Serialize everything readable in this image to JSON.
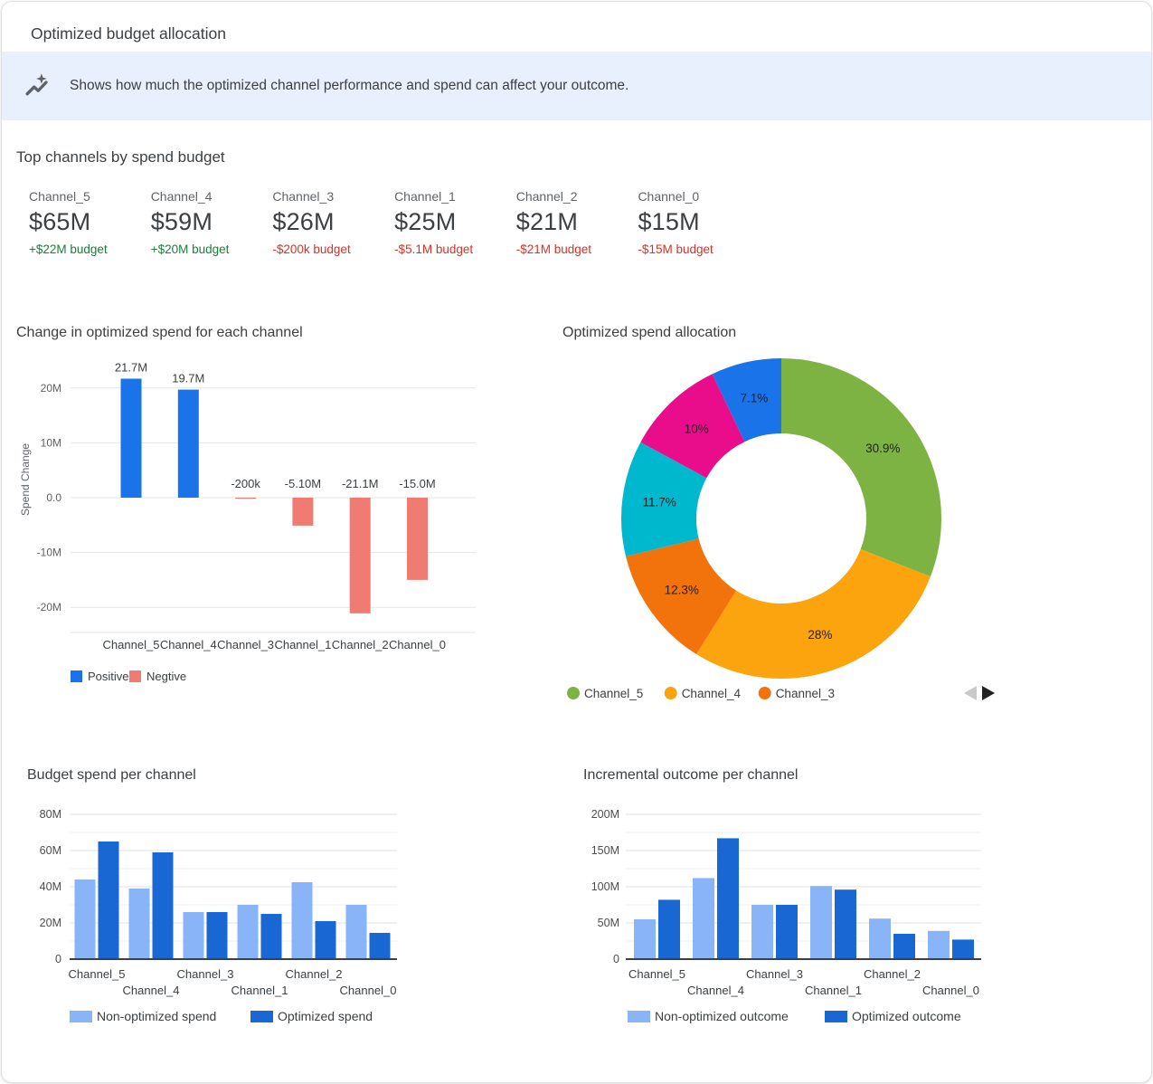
{
  "window": {
    "title": "Optimized budget allocation"
  },
  "banner": {
    "icon": "insights-sparkle-icon",
    "text": "Shows how much the optimized channel performance and spend can affect your outcome.",
    "bg_color": "#E8F0FE"
  },
  "top_channels": {
    "heading": "Top channels by spend budget",
    "up_color": "#188038",
    "down_color": "#D93025",
    "cards": [
      {
        "name": "Channel_5",
        "spend": "$65M",
        "delta": "+$22M budget",
        "direction": "up"
      },
      {
        "name": "Channel_4",
        "spend": "$59M",
        "delta": "+$20M budget",
        "direction": "up"
      },
      {
        "name": "Channel_3",
        "spend": "$26M",
        "delta": "-$200k budget",
        "direction": "down"
      },
      {
        "name": "Channel_1",
        "spend": "$25M",
        "delta": "-$5.1M budget",
        "direction": "down"
      },
      {
        "name": "Channel_2",
        "spend": "$21M",
        "delta": "-$21M budget",
        "direction": "down"
      },
      {
        "name": "Channel_0",
        "spend": "$15M",
        "delta": "-$15M budget",
        "direction": "down"
      }
    ]
  },
  "chart_data": {
    "spend_change": {
      "type": "bar",
      "title": "Change in optimized spend for each channel",
      "ylabel": "Spend Change",
      "categories": [
        "Channel_5",
        "Channel_4",
        "Channel_3",
        "Channel_1",
        "Channel_2",
        "Channel_0"
      ],
      "values_millions": [
        21.7,
        19.7,
        -0.2,
        -5.1,
        -21.1,
        -15.0
      ],
      "bar_labels": [
        "21.7M",
        "19.7M",
        "-200k",
        "-5.10M",
        "-21.1M",
        "-15.0M"
      ],
      "yticks": [
        {
          "v": 20,
          "label": "20M"
        },
        {
          "v": 10,
          "label": "10M"
        },
        {
          "v": 0,
          "label": "0.0"
        },
        {
          "v": -10,
          "label": "-10M"
        },
        {
          "v": -20,
          "label": "-20M"
        }
      ],
      "ylim": [
        -24.6,
        24.6
      ],
      "positive_color": "#1A73E8",
      "negative_color": "#F07B72",
      "legend": [
        {
          "label": "Positive",
          "color": "#1A73E8"
        },
        {
          "label": "Negtive",
          "color": "#F07B72"
        }
      ]
    },
    "spend_allocation": {
      "type": "donut",
      "title": "Optimized spend allocation",
      "slices": [
        {
          "pct": 30.9,
          "pct_label": "30.9%",
          "color": "#7CB342"
        },
        {
          "pct": 28,
          "pct_label": "28%",
          "color": "#FCA40D"
        },
        {
          "pct": 12.3,
          "pct_label": "12.3%",
          "color": "#F2720C"
        },
        {
          "pct": 11.7,
          "pct_label": "11.7%",
          "color": "#00B8CD"
        },
        {
          "pct": 10,
          "pct_label": "10%",
          "color": "#E90C8B"
        },
        {
          "pct": 7.1,
          "pct_label": "7.1%",
          "color": "#1A73E8"
        }
      ],
      "legend": [
        {
          "label": "Channel_5",
          "color": "#7CB342"
        },
        {
          "label": "Channel_4",
          "color": "#FCA40D"
        },
        {
          "label": "Channel_3",
          "color": "#F2720C"
        }
      ],
      "pagination": {
        "prev_enabled": false,
        "next_enabled": true
      }
    },
    "budget_spend": {
      "type": "grouped_bar",
      "title": "Budget spend per channel",
      "categories": [
        "Channel_5",
        "Channel_4",
        "Channel_3",
        "Channel_1",
        "Channel_2",
        "Channel_0"
      ],
      "series": [
        {
          "name": "Non-optimized spend",
          "color": "#8AB4F8",
          "values_millions": [
            44,
            39,
            26,
            30,
            42.5,
            30
          ]
        },
        {
          "name": "Optimized spend",
          "color": "#1967D2",
          "values_millions": [
            65,
            59,
            26,
            25,
            21,
            14.5
          ]
        }
      ],
      "yticks": [
        {
          "v": 0,
          "label": "0"
        },
        {
          "v": 20,
          "label": "20M"
        },
        {
          "v": 40,
          "label": "40M"
        },
        {
          "v": 60,
          "label": "60M"
        },
        {
          "v": 80,
          "label": "80M"
        }
      ],
      "minor_ticks": [
        10,
        30,
        50,
        70
      ],
      "ylim": [
        0,
        90
      ]
    },
    "incremental_outcome": {
      "type": "grouped_bar",
      "title": "Incremental outcome per channel",
      "categories": [
        "Channel_5",
        "Channel_4",
        "Channel_3",
        "Channel_1",
        "Channel_2",
        "Channel_0"
      ],
      "series": [
        {
          "name": "Non-optimized outcome",
          "color": "#8AB4F8",
          "values_millions": [
            55,
            112,
            75,
            101,
            56,
            39
          ]
        },
        {
          "name": "Optimized outcome",
          "color": "#1967D2",
          "values_millions": [
            82,
            167,
            75,
            96,
            35,
            27
          ]
        }
      ],
      "yticks": [
        {
          "v": 0,
          "label": "0"
        },
        {
          "v": 50,
          "label": "50M"
        },
        {
          "v": 100,
          "label": "100M"
        },
        {
          "v": 150,
          "label": "150M"
        },
        {
          "v": 200,
          "label": "200M"
        }
      ],
      "minor_ticks": [
        25,
        75,
        125,
        175
      ],
      "ylim": [
        0,
        225
      ]
    }
  }
}
